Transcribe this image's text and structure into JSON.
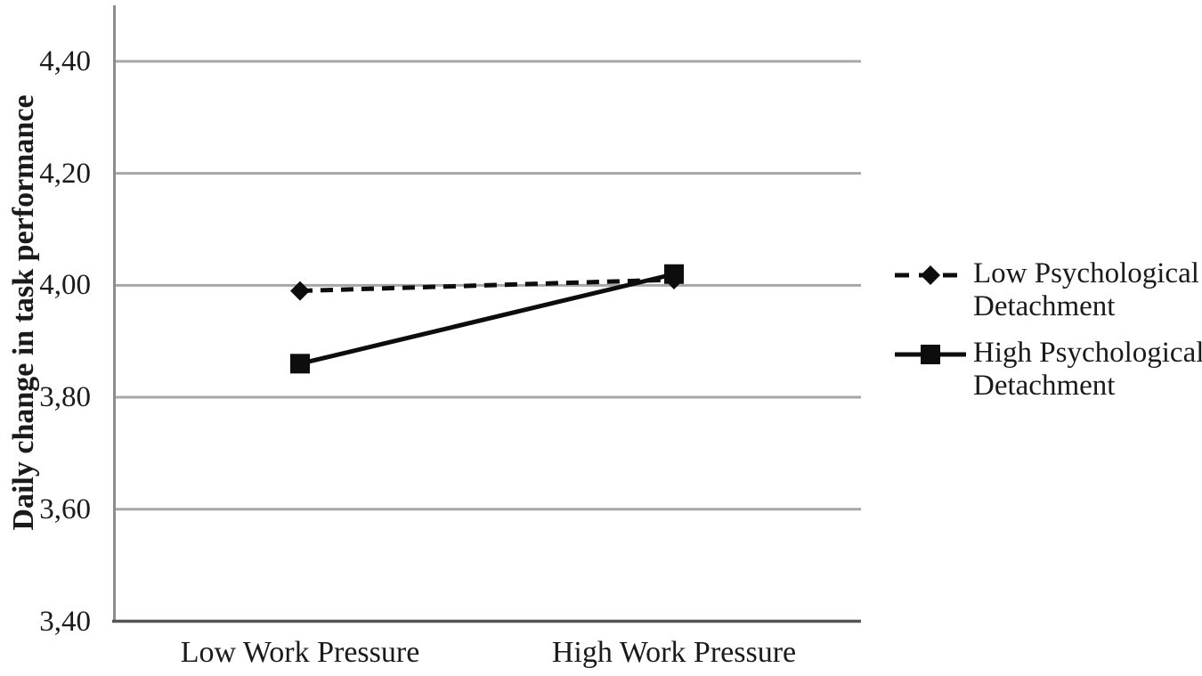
{
  "chart_data": {
    "type": "line",
    "title": "",
    "xlabel": "",
    "ylabel": "Daily change in task performance",
    "categories": [
      "Low Work Pressure",
      "High Work Pressure"
    ],
    "series": [
      {
        "name": "Low Psychological Detachment",
        "values": [
          3.99,
          4.01
        ],
        "line_style": "dashed",
        "marker": "diamond",
        "color": "#0d0d0d"
      },
      {
        "name": "High Psychological Detachment",
        "values": [
          3.86,
          4.02
        ],
        "line_style": "solid",
        "marker": "square",
        "color": "#0d0d0d"
      }
    ],
    "ylim": [
      3.4,
      4.5
    ],
    "yticks": [
      3.4,
      3.6,
      3.8,
      4.0,
      4.2,
      4.4
    ],
    "ytick_labels": [
      "3,40",
      "3,60",
      "3,80",
      "4,00",
      "4,20",
      "4,40"
    ],
    "decimal_separator": ",",
    "grid": true,
    "legend_position": "right",
    "colors": {
      "grid": "#a7a7a7",
      "y_axis": "#8c8c8c",
      "x_axis": "#555555",
      "text": "#1a1a1a",
      "background": "#ffffff"
    }
  }
}
